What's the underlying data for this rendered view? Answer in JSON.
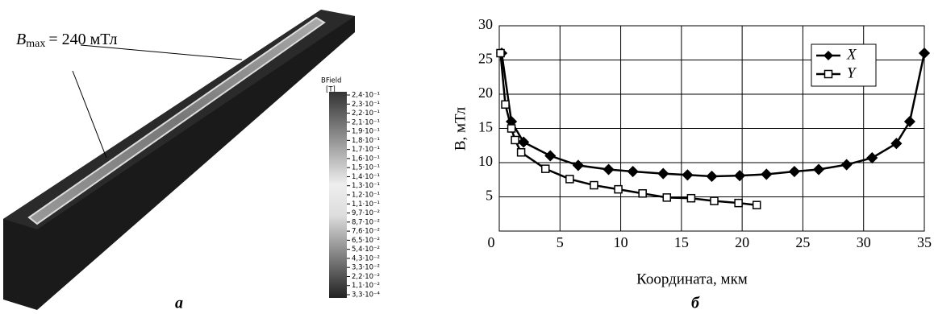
{
  "panel_a": {
    "annotation": {
      "symbol": "B",
      "subscript": "max",
      "text": "= 240 мТл"
    },
    "colorbar": {
      "title": "BField",
      "unit": "[T]",
      "labels": [
        "2,4·10⁻¹",
        "2,3·10⁻¹",
        "2,2·10⁻¹",
        "2,1·10⁻¹",
        "1,9·10⁻¹",
        "1,8·10⁻¹",
        "1,7·10⁻¹",
        "1,6·10⁻¹",
        "1,5·10⁻¹",
        "1,4·10⁻¹",
        "1,3·10⁻¹",
        "1,2·10⁻¹",
        "1,1·10⁻¹",
        "9,7·10⁻²",
        "8,7·10⁻²",
        "7,6·10⁻²",
        "6,5·10⁻²",
        "5,4·10⁻²",
        "4,3·10⁻²",
        "3,3·10⁻²",
        "2,2·10⁻²",
        "1,1·10⁻²",
        "3,3·10⁻⁴"
      ]
    },
    "label": "а"
  },
  "chart_data": {
    "type": "line",
    "panel_label": "б",
    "x_label": "Координата, мкм",
    "y_label": "B, мТл",
    "xlim": [
      0,
      35
    ],
    "xticks": [
      0,
      5,
      10,
      15,
      20,
      25,
      30,
      35
    ],
    "ylim": [
      0,
      30
    ],
    "yticks": [
      5,
      10,
      15,
      20,
      25,
      30
    ],
    "grid": true,
    "legend": "top-right",
    "series": [
      {
        "name": "X",
        "color": "#000000",
        "marker": "diamond",
        "x": [
          0.2,
          1.0,
          2.0,
          4.2,
          6.5,
          9.0,
          11.0,
          13.5,
          15.5,
          17.5,
          19.8,
          22.0,
          24.3,
          26.3,
          28.6,
          30.7,
          32.7,
          33.8,
          35.0
        ],
        "values": [
          26,
          16,
          13,
          11,
          9.6,
          9.0,
          8.7,
          8.4,
          8.2,
          8.0,
          8.1,
          8.3,
          8.7,
          9.0,
          9.7,
          10.7,
          12.8,
          16,
          26
        ]
      },
      {
        "name": "Y",
        "color": "#000000",
        "marker": "square",
        "x": [
          0.1,
          0.5,
          1.0,
          1.3,
          1.8,
          3.8,
          5.8,
          7.8,
          9.8,
          11.8,
          13.8,
          15.8,
          17.7,
          19.7,
          21.2
        ],
        "values": [
          26,
          18.5,
          15,
          13.3,
          11.5,
          9.1,
          7.6,
          6.7,
          6.1,
          5.5,
          4.9,
          4.8,
          4.4,
          4.1,
          3.8
        ]
      }
    ]
  }
}
